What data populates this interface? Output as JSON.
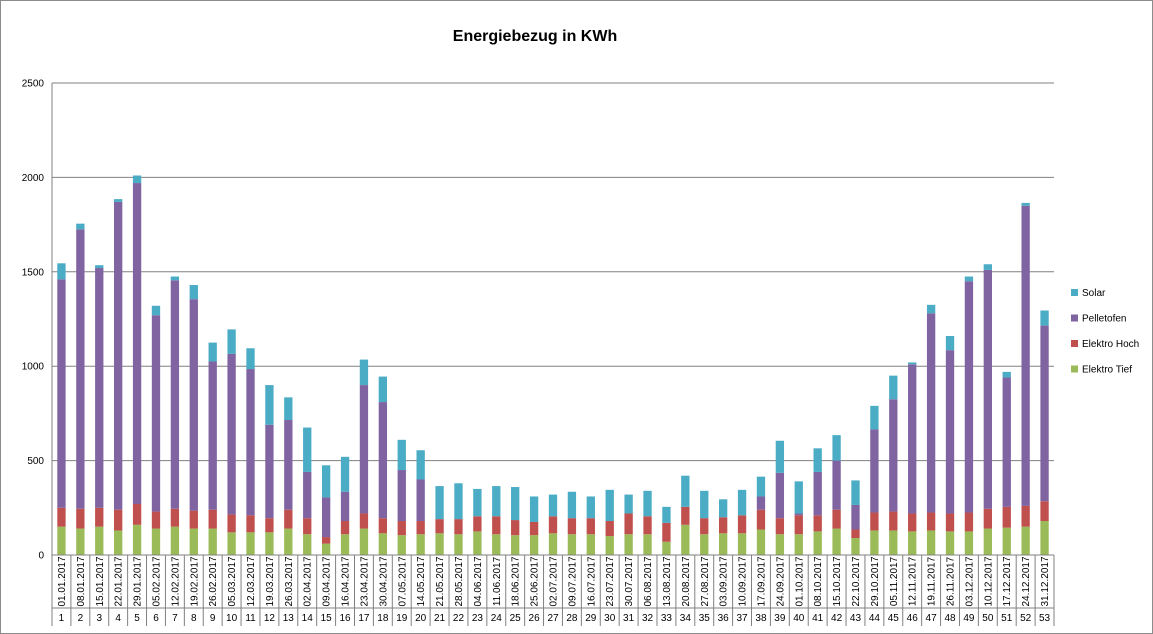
{
  "chart_data": {
    "type": "bar",
    "stacked": true,
    "title": "Energiebezug in KWh",
    "xlabel": "",
    "ylabel": "",
    "ylim": [
      0,
      2500
    ],
    "yticks": [
      0,
      500,
      1000,
      1500,
      2000,
      2500
    ],
    "grid": true,
    "legend_position": "right",
    "dates": [
      "01.01.2017",
      "08.01.2017",
      "15.01.2017",
      "22.01.2017",
      "29.01.2017",
      "05.02.2017",
      "12.02.2017",
      "19.02.2017",
      "26.02.2017",
      "05.03.2017",
      "12.03.2017",
      "19.03.2017",
      "26.03.2017",
      "02.04.2017",
      "09.04.2017",
      "16.04.2017",
      "23.04.2017",
      "30.04.2017",
      "07.05.2017",
      "14.05.2017",
      "21.05.2017",
      "28.05.2017",
      "04.06.2017",
      "11.06.2017",
      "18.06.2017",
      "25.06.2017",
      "02.07.2017",
      "09.07.2017",
      "16.07.2017",
      "23.07.2017",
      "30.07.2017",
      "06.08.2017",
      "13.08.2017",
      "20.08.2017",
      "27.08.2017",
      "03.09.2017",
      "10.09.2017",
      "17.09.2017",
      "24.09.2017",
      "01.10.2017",
      "08.10.2017",
      "15.10.2017",
      "22.10.2017",
      "29.10.2017",
      "05.11.2017",
      "12.11.2017",
      "19.11.2017",
      "26.11.2017",
      "03.12.2017",
      "10.12.2017",
      "17.12.2017",
      "24.12.2017",
      "31.12.2017"
    ],
    "weeks": [
      "1",
      "2",
      "3",
      "4",
      "5",
      "6",
      "7",
      "8",
      "9",
      "10",
      "11",
      "12",
      "13",
      "14",
      "15",
      "16",
      "17",
      "18",
      "19",
      "20",
      "21",
      "22",
      "23",
      "24",
      "25",
      "26",
      "27",
      "28",
      "29",
      "30",
      "31",
      "32",
      "33",
      "34",
      "35",
      "36",
      "37",
      "38",
      "39",
      "40",
      "41",
      "42",
      "43",
      "44",
      "45",
      "46",
      "47",
      "48",
      "49",
      "50",
      "51",
      "52",
      "53"
    ],
    "series": [
      {
        "name": "Elektro Tief",
        "color": "#9bbb59",
        "values": [
          150,
          140,
          150,
          130,
          160,
          140,
          150,
          140,
          140,
          120,
          120,
          120,
          140,
          110,
          60,
          110,
          140,
          115,
          105,
          110,
          115,
          110,
          125,
          110,
          105,
          105,
          115,
          110,
          110,
          100,
          110,
          110,
          70,
          160,
          110,
          115,
          115,
          135,
          110,
          110,
          125,
          140,
          90,
          130,
          130,
          125,
          130,
          125,
          125,
          140,
          145,
          150,
          180
        ]
      },
      {
        "name": "Elektro Hoch",
        "color": "#c0504d",
        "values": [
          100,
          105,
          100,
          110,
          110,
          90,
          95,
          95,
          100,
          95,
          90,
          75,
          100,
          85,
          35,
          70,
          80,
          80,
          75,
          70,
          75,
          80,
          80,
          95,
          80,
          70,
          90,
          85,
          85,
          80,
          110,
          95,
          100,
          95,
          85,
          85,
          95,
          105,
          85,
          100,
          85,
          100,
          45,
          95,
          100,
          95,
          95,
          95,
          100,
          105,
          110,
          110,
          105
        ]
      },
      {
        "name": "Pelletofen",
        "color": "#8064a2",
        "values": [
          1210,
          1480,
          1270,
          1630,
          1700,
          1040,
          1210,
          1120,
          785,
          850,
          775,
          495,
          475,
          245,
          210,
          155,
          680,
          615,
          270,
          220,
          0,
          0,
          0,
          0,
          0,
          0,
          0,
          0,
          0,
          0,
          0,
          0,
          0,
          0,
          0,
          0,
          0,
          70,
          240,
          10,
          230,
          260,
          130,
          440,
          595,
          790,
          1055,
          865,
          1225,
          1265,
          685,
          1590,
          930
        ]
      },
      {
        "name": "Solar",
        "color": "#4bacc6",
        "values": [
          85,
          30,
          15,
          15,
          40,
          50,
          20,
          75,
          100,
          130,
          110,
          210,
          120,
          235,
          170,
          185,
          135,
          135,
          160,
          155,
          175,
          190,
          145,
          160,
          175,
          135,
          115,
          140,
          115,
          165,
          100,
          135,
          85,
          165,
          145,
          95,
          135,
          105,
          170,
          170,
          125,
          135,
          130,
          125,
          125,
          10,
          45,
          75,
          25,
          30,
          30,
          15,
          80
        ]
      }
    ]
  }
}
